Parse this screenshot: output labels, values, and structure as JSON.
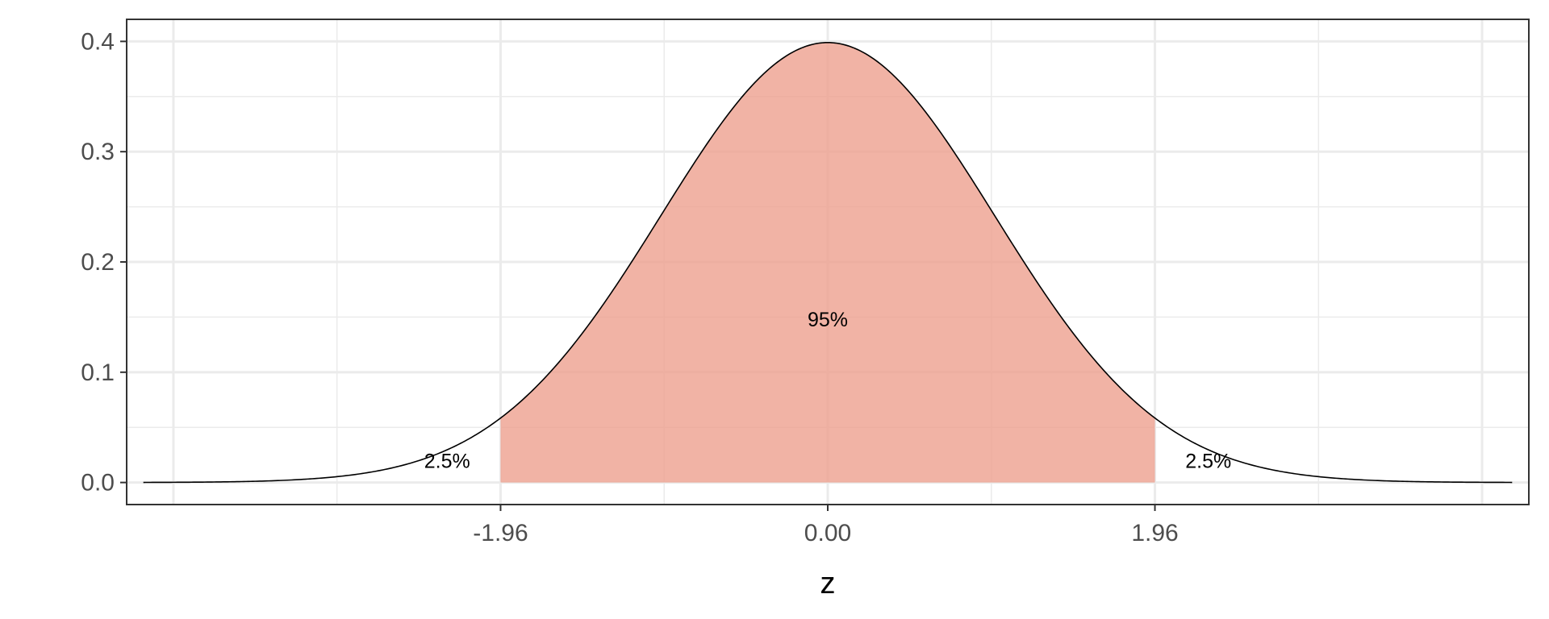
{
  "chart_data": {
    "type": "area",
    "title": "",
    "xlabel": "z",
    "ylabel": "",
    "xlim": [
      -4.2,
      4.2
    ],
    "ylim": [
      -0.02,
      0.42
    ],
    "x_ticks": [
      -1.96,
      0,
      1.96
    ],
    "x_tick_labels": [
      "-1.96",
      "0.00",
      "1.96"
    ],
    "y_ticks": [
      0,
      0.1,
      0.2,
      0.3,
      0.4
    ],
    "y_tick_labels": [
      "0.0",
      "0.1",
      "0.2",
      "0.3",
      "0.4"
    ],
    "grid": true,
    "distribution": "standard normal density",
    "curve_range": [
      -4.1,
      4.1
    ],
    "shaded_region": {
      "from": -1.96,
      "to": 1.96,
      "color": "#eea08f"
    },
    "annotations": [
      {
        "text": "2.5%",
        "x": -2.28,
        "y": 0.02
      },
      {
        "text": "95%",
        "x": 0,
        "y": 0.148
      },
      {
        "text": "2.5%",
        "x": 2.28,
        "y": 0.02
      }
    ]
  }
}
